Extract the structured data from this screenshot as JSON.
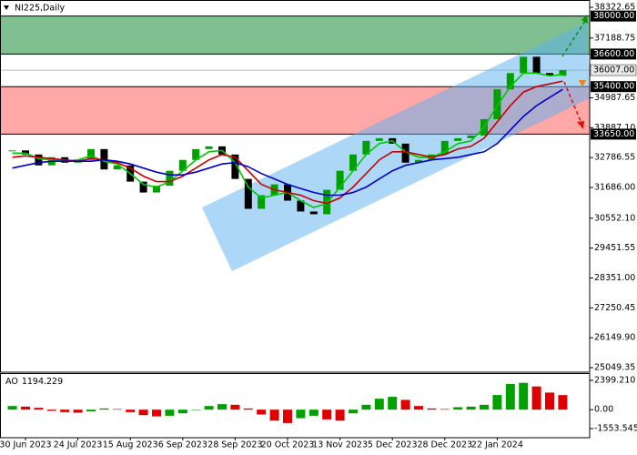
{
  "chart_data": {
    "type": "candlestick",
    "title": "NI225,Daily",
    "categories": [
      null,
      "30 Jun 2023",
      null,
      null,
      null,
      "24 Jul 2023",
      null,
      null,
      null,
      "15 Aug 2023",
      null,
      null,
      null,
      "6 Sep 2023",
      null,
      null,
      null,
      "28 Sep 2023",
      null,
      null,
      null,
      "20 Oct 2023",
      null,
      null,
      null,
      "13 Nov 2023",
      null,
      null,
      null,
      "5 Dec 2023",
      null,
      null,
      null,
      "28 Dec 2023",
      null,
      null,
      null,
      "22 Jan 2024",
      null,
      null,
      null,
      null,
      null
    ],
    "close": [
      33050,
      32900,
      32500,
      32800,
      32600,
      32700,
      33100,
      32350,
      32500,
      31900,
      31500,
      31750,
      32300,
      32700,
      33100,
      33200,
      32900,
      32000,
      30900,
      31400,
      31800,
      31200,
      30800,
      30700,
      31600,
      32300,
      32900,
      33400,
      33500,
      33300,
      32600,
      32700,
      32900,
      33400,
      33500,
      33600,
      34200,
      35300,
      35900,
      36500,
      35900,
      35800,
      36007
    ],
    "up_color": "#00a000",
    "down_color": "#000000",
    "series": [
      {
        "color": "#00c800",
        "values": [
          32950,
          32950,
          32750,
          32700,
          32650,
          32700,
          32850,
          32650,
          32550,
          32200,
          31800,
          31700,
          31900,
          32300,
          32700,
          33000,
          33050,
          32600,
          31700,
          31300,
          31400,
          31500,
          31200,
          30950,
          31100,
          31700,
          32300,
          32900,
          33300,
          33400,
          33000,
          32800,
          32800,
          33000,
          33300,
          33400,
          33900,
          34700,
          35400,
          35900,
          35900,
          35800,
          35850
        ]
      },
      {
        "color": "#c80000",
        "values": [
          32800,
          32850,
          32800,
          32750,
          32700,
          32650,
          32750,
          32700,
          32600,
          32400,
          32100,
          31900,
          31900,
          32100,
          32400,
          32700,
          32900,
          32800,
          32300,
          31800,
          31600,
          31500,
          31400,
          31200,
          31100,
          31300,
          31700,
          32200,
          32700,
          33000,
          33000,
          32900,
          32800,
          32900,
          33100,
          33200,
          33500,
          34100,
          34700,
          35200,
          35400,
          35500,
          35600
        ]
      },
      {
        "color": "#0000c8",
        "values": [
          32400,
          32500,
          32600,
          32650,
          32650,
          32650,
          32650,
          32700,
          32650,
          32550,
          32400,
          32250,
          32150,
          32150,
          32250,
          32400,
          32550,
          32600,
          32450,
          32200,
          32000,
          31800,
          31650,
          31500,
          31400,
          31400,
          31500,
          31700,
          32000,
          32300,
          32500,
          32600,
          32700,
          32750,
          32800,
          32900,
          33000,
          33300,
          33800,
          34300,
          34700,
          35000,
          35300
        ]
      }
    ],
    "ylim": [
      25049.35,
      38322.65
    ],
    "yticks": [
      38322.65,
      37188.75,
      34987.65,
      {
        "value": 33887.1,
        "label": "33887.10"
      },
      32786.55,
      {
        "value": 31686,
        "label": "31686.00"
      },
      {
        "value": 30552.1,
        "label": "30552.10"
      },
      29451.55,
      {
        "value": 28351,
        "label": "28351.00"
      },
      27250.45,
      {
        "value": 26149.9,
        "label": "26149.90"
      },
      25049.35
    ],
    "zones": [
      {
        "top": {
          "value": 38000,
          "label": "38000.00"
        },
        "bottom": {
          "value": 36600,
          "label": "36600.00"
        },
        "color": "#80c090"
      },
      {
        "top": {
          "value": 35400,
          "label": "35400.00"
        },
        "bottom": {
          "value": 33650,
          "label": "33650.00"
        },
        "color": "#ffa8a8"
      }
    ],
    "price": {
      "value": 36007,
      "label": "36007.00"
    },
    "ao": {
      "name": "AO",
      "current": 1194.229,
      "values": [
        300,
        250,
        150,
        -100,
        -200,
        -250,
        -150,
        100,
        50,
        -200,
        -450,
        -550,
        -500,
        -300,
        0,
        300,
        450,
        400,
        100,
        -400,
        -900,
        -1100,
        -700,
        -500,
        -800,
        -900,
        -300,
        400,
        900,
        1050,
        800,
        300,
        100,
        50,
        200,
        250,
        400,
        1200,
        2100,
        2200,
        1900,
        1400,
        1194.229
      ],
      "ylim": [
        -1553.545,
        2399.21
      ],
      "yticks": [
        {
          "value": 2399.21,
          "label": "2399.210"
        },
        {
          "value": 0,
          "label": "0.00"
        },
        -1553.545
      ],
      "up_color": "#00a000",
      "down_color": "#e00000"
    }
  }
}
